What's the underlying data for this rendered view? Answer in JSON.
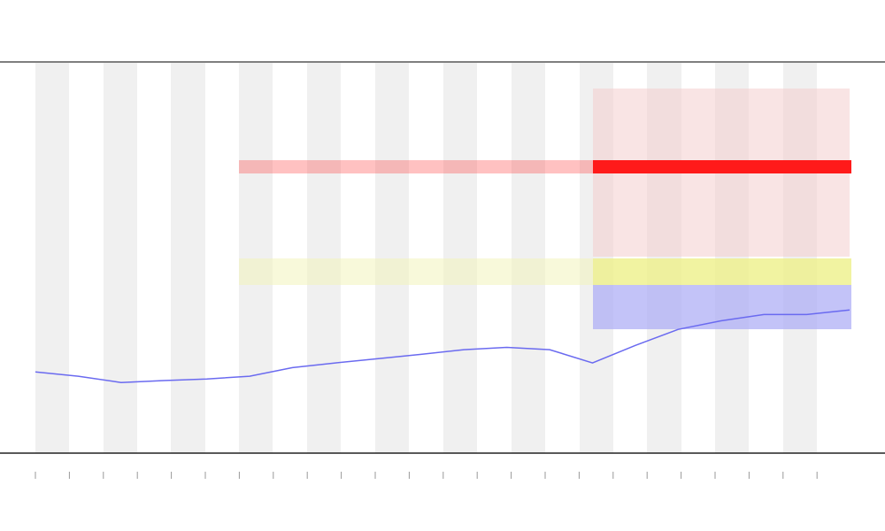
{
  "chart_data": {
    "type": "line",
    "series": [
      {
        "color": "#6a6af0",
        "values": [
          20.8,
          19.7,
          18.1,
          18.6,
          19.0,
          19.7,
          21.9,
          23.1,
          24.2,
          25.3,
          26.5,
          27.1,
          26.5,
          23.1,
          27.6,
          31.7,
          33.9,
          35.5,
          35.5,
          36.7
        ]
      }
    ],
    "ylim": [
      0,
      100
    ]
  }
}
